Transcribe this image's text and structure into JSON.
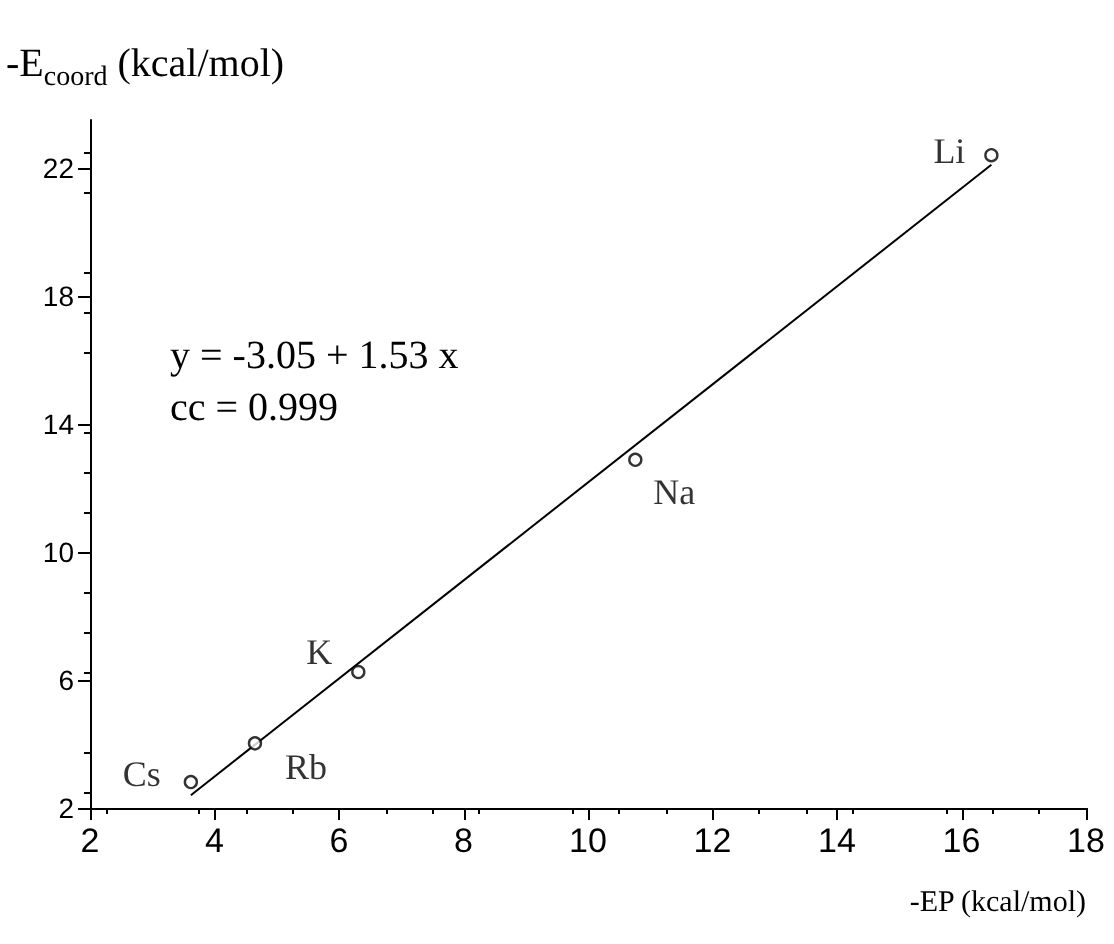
{
  "chart_data": {
    "type": "scatter",
    "ylabel": "-E$_{coord}$ (kcal/mol)",
    "xlabel": "-EP (kcal/mol)",
    "xlim": [
      2,
      18
    ],
    "xticks": [
      2,
      4,
      6,
      8,
      10,
      12,
      14,
      16,
      18
    ],
    "ylim": [
      2,
      23.5
    ],
    "yticks": [
      2,
      6,
      10,
      14,
      18,
      22
    ],
    "grid": false,
    "series": [
      {
        "color": "#000000",
        "marker": "circle",
        "x": [
          3.62,
          4.65,
          6.31,
          10.76,
          16.48
        ],
        "values": [
          2.81,
          4.02,
          6.25,
          12.88,
          22.4
        ]
      },
      {
        "type": "line",
        "color": "#000000",
        "marker": "none",
        "line_style": "solid",
        "x": [
          3.62,
          16.48
        ],
        "values": [
          2.4,
          22.1
        ]
      }
    ],
    "annotations": [
      {
        "text": "Li",
        "x": 16.48,
        "y": 22.4
      },
      {
        "text": "Na",
        "x": 10.76,
        "y": 12.88
      },
      {
        "text": "K",
        "x": 6.31,
        "y": 6.25
      },
      {
        "text": "Rb",
        "x": 4.65,
        "y": 4.02
      },
      {
        "text": "Cs",
        "x": 3.62,
        "y": 2.81
      },
      "y = -3.05 + 1.53 x",
      "cc = 0.999"
    ]
  }
}
